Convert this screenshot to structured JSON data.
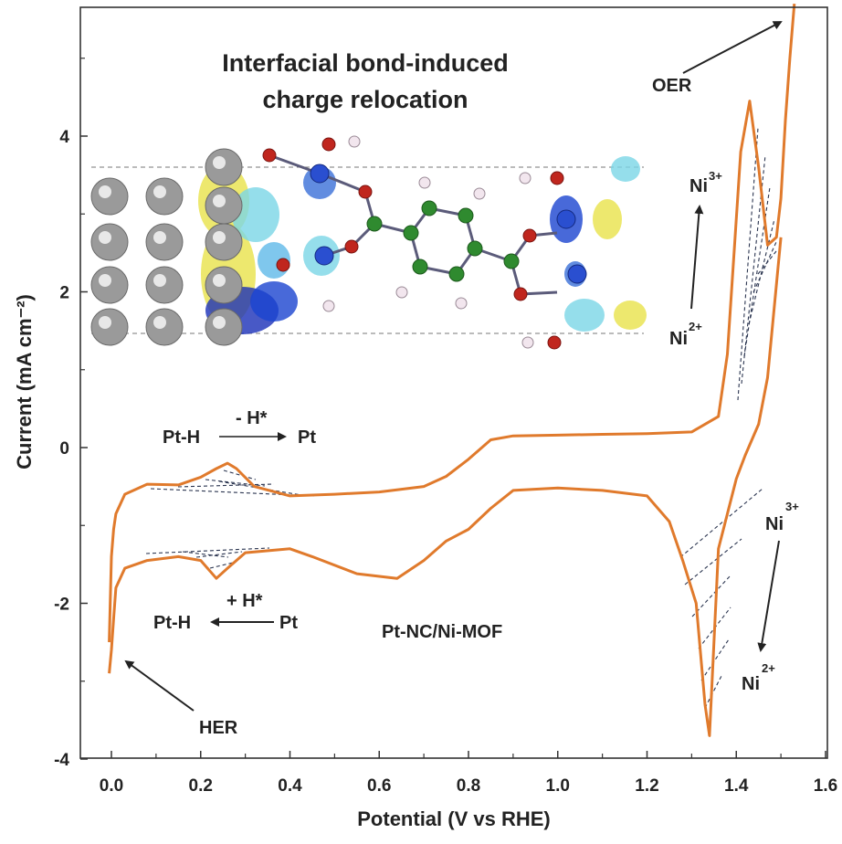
{
  "chart_data": {
    "type": "line",
    "title": "",
    "xlabel": "Potential (V vs RHE)",
    "ylabel": "Current (mA cm⁻²)",
    "xlim": [
      -0.07,
      1.6
    ],
    "ylim": [
      -4,
      5.6
    ],
    "x_ticks": [
      "0.0",
      "0.2",
      "0.4",
      "0.6",
      "0.8",
      "1.0",
      "1.2",
      "1.4",
      "1.6"
    ],
    "y_ticks": [
      "-4",
      "-2",
      "0",
      "2",
      "4"
    ],
    "grid": false,
    "line_color": "#e07a2c",
    "series": [
      {
        "name": "",
        "x": [
          -0.005,
          0.0,
          0.005,
          0.01,
          0.03,
          0.08,
          0.15,
          0.2,
          0.235,
          0.26,
          0.28,
          0.32,
          0.4,
          0.5,
          0.6,
          0.7,
          0.75,
          0.8,
          0.85,
          0.9,
          1.0,
          1.1,
          1.2,
          1.3,
          1.36,
          1.38,
          1.41,
          1.43,
          1.45,
          1.47,
          1.49,
          1.5,
          1.51,
          1.52,
          1.53
        ],
        "y": [
          -2.5,
          -1.4,
          -1.05,
          -0.85,
          -0.6,
          -0.47,
          -0.48,
          -0.38,
          -0.27,
          -0.2,
          -0.27,
          -0.5,
          -0.62,
          -0.6,
          -0.57,
          -0.5,
          -0.37,
          -0.15,
          0.1,
          0.15,
          0.16,
          0.17,
          0.18,
          0.2,
          0.4,
          1.2,
          3.8,
          4.45,
          3.6,
          2.6,
          2.7,
          3.2,
          4.2,
          5.0,
          5.7
        ]
      },
      {
        "name": "",
        "x": [
          1.5,
          1.47,
          1.45,
          1.42,
          1.4,
          1.36,
          1.34,
          1.33,
          1.31,
          1.28,
          1.25,
          1.2,
          1.1,
          1.0,
          0.9,
          0.85,
          0.8,
          0.75,
          0.7,
          0.64,
          0.55,
          0.45,
          0.4,
          0.3,
          0.26,
          0.235,
          0.2,
          0.15,
          0.08,
          0.03,
          0.01,
          0.005,
          0.0,
          -0.005
        ],
        "y": [
          2.7,
          0.9,
          0.3,
          -0.1,
          -0.4,
          -1.3,
          -3.7,
          -3.3,
          -2.0,
          -1.45,
          -0.95,
          -0.62,
          -0.55,
          -0.52,
          -0.55,
          -0.78,
          -1.05,
          -1.2,
          -1.45,
          -1.68,
          -1.62,
          -1.4,
          -1.3,
          -1.35,
          -1.55,
          -1.68,
          -1.45,
          -1.4,
          -1.45,
          -1.55,
          -1.8,
          -2.2,
          -2.6,
          -2.9
        ]
      }
    ],
    "annotations": {
      "oer": "OER",
      "her": "HER",
      "ni3_top": "Ni",
      "ni3_top_sup": "3+",
      "ni2_top": "Ni",
      "ni2_top_sup": "2+",
      "ni3_bottom": "Ni",
      "ni3_bottom_sup": "3+",
      "ni2_bottom": "Ni",
      "ni2_bottom_sup": "2+",
      "desorb_label": "- H*",
      "desorb_from": "Pt-H",
      "desorb_to": "Pt",
      "adsorb_label": "+ H*",
      "adsorb_from": "Pt",
      "adsorb_to": "Pt-H",
      "sample": "Pt-NC/Ni-MOF",
      "inset_title_line1": "Interfacial bond-induced",
      "inset_title_line2": "charge relocation"
    }
  }
}
